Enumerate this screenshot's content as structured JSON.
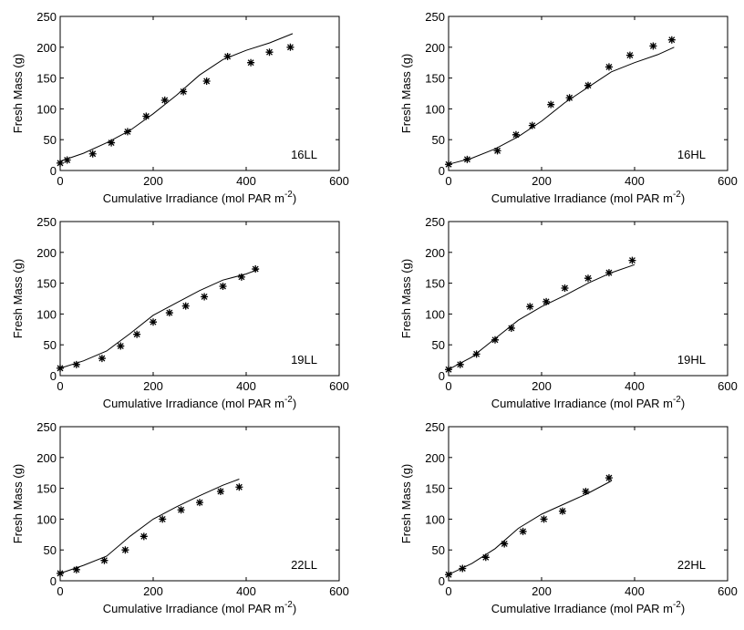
{
  "chart_data": [
    {
      "type": "scatter",
      "panel_label": "16LL",
      "xlabel_main": "Cumulative Irradiance (mol PAR m",
      "xlabel_sup": "-2",
      "xlabel_end": ")",
      "ylabel": "Fresh Mass (g)",
      "xlim": [
        0,
        600
      ],
      "ylim": [
        0,
        250
      ],
      "xticks": [
        "0",
        "200",
        "400",
        "600"
      ],
      "yticks": [
        "0",
        "50",
        "100",
        "150",
        "200",
        "250"
      ],
      "grid": false,
      "series": [
        {
          "kind": "observed",
          "marker": "asterisk",
          "x": [
            0,
            15,
            70,
            110,
            145,
            185,
            225,
            265,
            315,
            360,
            410,
            450,
            495
          ],
          "y": [
            12,
            17,
            27,
            45,
            63,
            88,
            114,
            128,
            145,
            185,
            175,
            192,
            200
          ]
        },
        {
          "kind": "model",
          "line": "solid",
          "x": [
            0,
            50,
            100,
            150,
            200,
            250,
            300,
            350,
            400,
            450,
            500
          ],
          "y": [
            15,
            28,
            45,
            65,
            92,
            122,
            155,
            180,
            195,
            207,
            222
          ]
        }
      ]
    },
    {
      "type": "scatter",
      "panel_label": "16HL",
      "xlabel_main": "Cumulative Irradiance (mol PAR m",
      "xlabel_sup": "-2",
      "xlabel_end": ")",
      "ylabel": "Fresh Mass (g)",
      "xlim": [
        0,
        600
      ],
      "ylim": [
        0,
        250
      ],
      "xticks": [
        "0",
        "200",
        "400",
        "600"
      ],
      "yticks": [
        "0",
        "50",
        "100",
        "150",
        "200",
        "250"
      ],
      "grid": false,
      "series": [
        {
          "kind": "observed",
          "marker": "asterisk",
          "x": [
            0,
            40,
            105,
            145,
            180,
            220,
            260,
            300,
            345,
            390,
            440,
            480
          ],
          "y": [
            10,
            18,
            32,
            58,
            73,
            107,
            118,
            138,
            168,
            187,
            202,
            212
          ]
        },
        {
          "kind": "model",
          "line": "solid",
          "x": [
            0,
            50,
            100,
            150,
            200,
            250,
            300,
            350,
            400,
            450,
            485
          ],
          "y": [
            10,
            20,
            35,
            55,
            80,
            110,
            135,
            160,
            175,
            188,
            200
          ]
        }
      ]
    },
    {
      "type": "scatter",
      "panel_label": "19LL",
      "xlabel_main": "Cumulative Irradiance (mol PAR m",
      "xlabel_sup": "-2",
      "xlabel_end": ")",
      "ylabel": "Fresh Mass (g)",
      "xlim": [
        0,
        600
      ],
      "ylim": [
        0,
        250
      ],
      "xticks": [
        "0",
        "200",
        "400",
        "600"
      ],
      "yticks": [
        "0",
        "50",
        "100",
        "150",
        "200",
        "250"
      ],
      "grid": false,
      "series": [
        {
          "kind": "observed",
          "marker": "asterisk",
          "x": [
            0,
            35,
            90,
            130,
            165,
            200,
            235,
            270,
            310,
            350,
            390,
            420
          ],
          "y": [
            12,
            18,
            28,
            48,
            67,
            87,
            102,
            113,
            128,
            145,
            160,
            173
          ]
        },
        {
          "kind": "model",
          "line": "solid",
          "x": [
            0,
            50,
            100,
            150,
            200,
            250,
            300,
            350,
            400,
            425
          ],
          "y": [
            12,
            24,
            40,
            68,
            98,
            118,
            138,
            155,
            165,
            172
          ]
        }
      ]
    },
    {
      "type": "scatter",
      "panel_label": "19HL",
      "xlabel_main": "Cumulative Irradiance (mol PAR m",
      "xlabel_sup": "-2",
      "xlabel_end": ")",
      "ylabel": "Fresh Mass (g)",
      "xlim": [
        0,
        600
      ],
      "ylim": [
        0,
        250
      ],
      "xticks": [
        "0",
        "200",
        "400",
        "600"
      ],
      "yticks": [
        "0",
        "50",
        "100",
        "150",
        "200",
        "250"
      ],
      "grid": false,
      "series": [
        {
          "kind": "observed",
          "marker": "asterisk",
          "x": [
            0,
            25,
            60,
            100,
            135,
            175,
            210,
            250,
            300,
            345,
            395
          ],
          "y": [
            10,
            18,
            35,
            58,
            77,
            112,
            120,
            142,
            158,
            167,
            187
          ]
        },
        {
          "kind": "model",
          "line": "solid",
          "x": [
            0,
            50,
            100,
            150,
            200,
            250,
            300,
            350,
            400
          ],
          "y": [
            10,
            30,
            60,
            90,
            112,
            130,
            150,
            167,
            180
          ]
        }
      ]
    },
    {
      "type": "scatter",
      "panel_label": "22LL",
      "xlabel_main": "Cumulative Irradiance (mol PAR m",
      "xlabel_sup": "-2",
      "xlabel_end": ")",
      "ylabel": "Fresh Mass (g)",
      "xlim": [
        0,
        600
      ],
      "ylim": [
        0,
        250
      ],
      "xticks": [
        "0",
        "200",
        "400",
        "600"
      ],
      "yticks": [
        "0",
        "50",
        "100",
        "150",
        "200",
        "250"
      ],
      "grid": false,
      "series": [
        {
          "kind": "observed",
          "marker": "asterisk",
          "x": [
            0,
            35,
            95,
            140,
            180,
            220,
            260,
            300,
            345,
            385
          ],
          "y": [
            12,
            18,
            33,
            50,
            72,
            100,
            115,
            127,
            145,
            152
          ]
        },
        {
          "kind": "model",
          "line": "solid",
          "x": [
            0,
            50,
            100,
            150,
            200,
            250,
            300,
            350,
            385
          ],
          "y": [
            12,
            25,
            40,
            72,
            100,
            120,
            138,
            155,
            165
          ]
        }
      ]
    },
    {
      "type": "scatter",
      "panel_label": "22HL",
      "xlabel_main": "Cumulative Irradiance (mol PAR m",
      "xlabel_sup": "-2",
      "xlabel_end": ")",
      "ylabel": "Fresh Mass (g)",
      "xlim": [
        0,
        600
      ],
      "ylim": [
        0,
        250
      ],
      "xticks": [
        "0",
        "200",
        "400",
        "600"
      ],
      "yticks": [
        "0",
        "50",
        "100",
        "150",
        "200",
        "250"
      ],
      "grid": false,
      "series": [
        {
          "kind": "observed",
          "marker": "asterisk",
          "x": [
            0,
            30,
            80,
            120,
            160,
            205,
            245,
            295,
            345
          ],
          "y": [
            10,
            20,
            38,
            60,
            80,
            100,
            113,
            145,
            167
          ]
        },
        {
          "kind": "model",
          "line": "solid",
          "x": [
            0,
            50,
            100,
            150,
            200,
            250,
            300,
            350
          ],
          "y": [
            10,
            28,
            52,
            85,
            108,
            125,
            142,
            162
          ]
        }
      ]
    }
  ]
}
